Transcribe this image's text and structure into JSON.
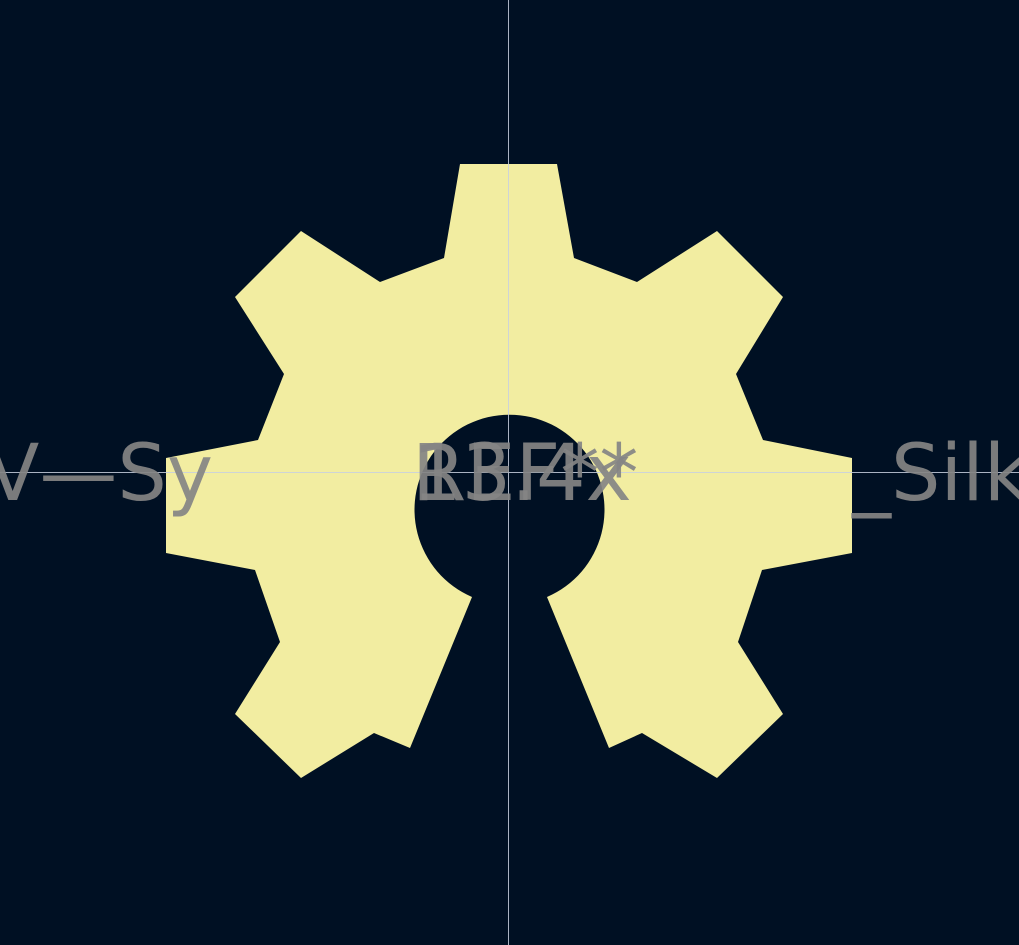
{
  "viewport": {
    "background_color": "#001023",
    "crosshair_color": "#C8D0E0"
  },
  "footprint": {
    "logo_icon": "oshw-gear-icon",
    "logo_color": "#F2EDA1"
  },
  "silkscreen": {
    "text_color": "#848484",
    "left_text": "V—Sy",
    "center_text_a": "REF**",
    "center_text_b": "13.4x",
    "right_text": "_Silk"
  }
}
